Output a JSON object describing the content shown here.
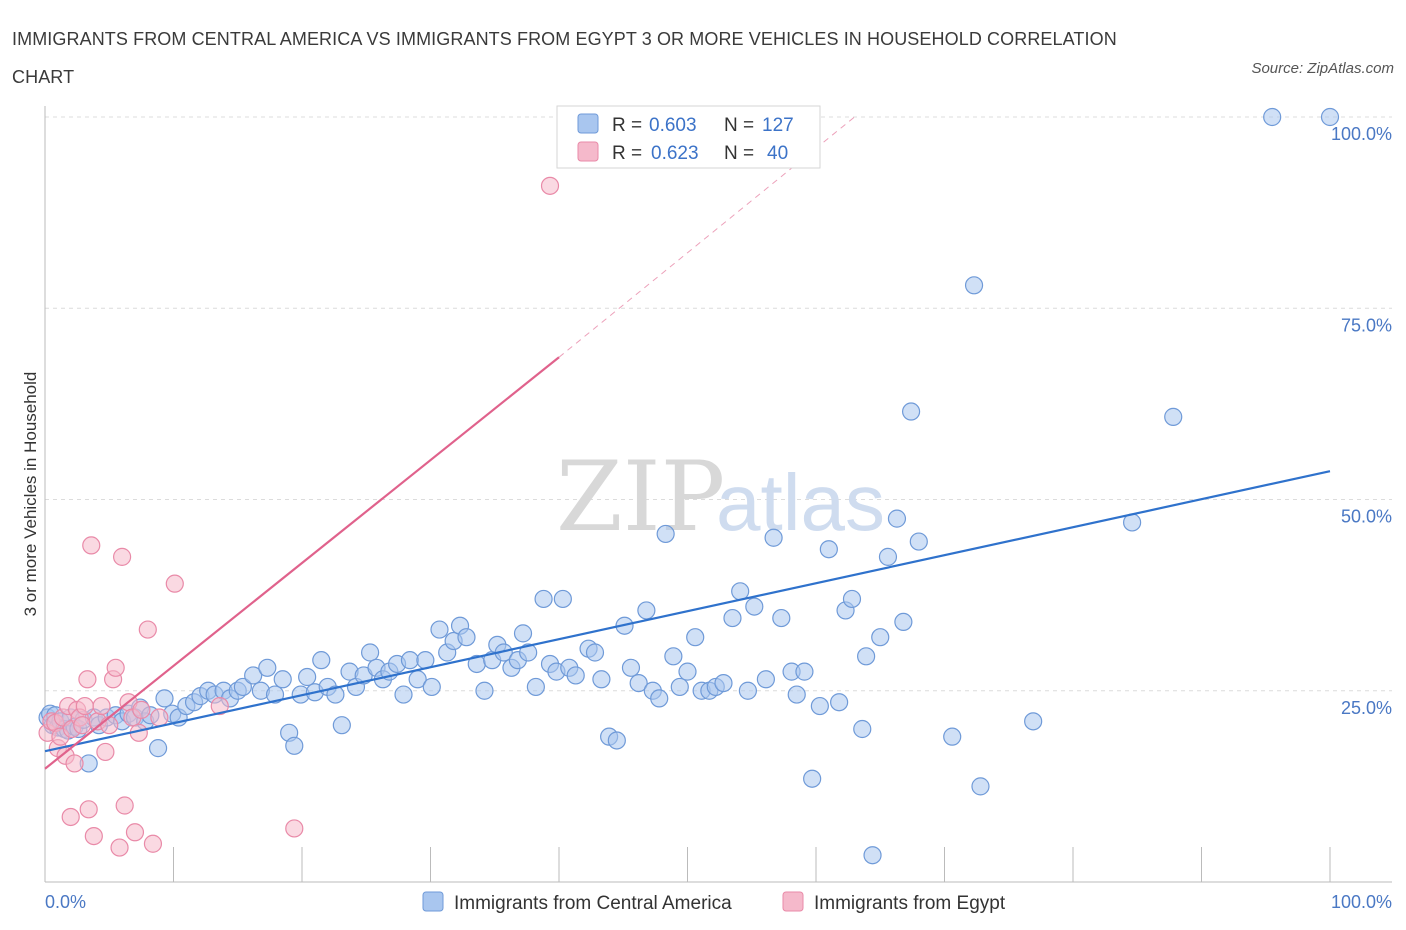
{
  "title": "IMMIGRANTS FROM CENTRAL AMERICA VS IMMIGRANTS FROM EGYPT 3 OR MORE VEHICLES IN HOUSEHOLD CORRELATION CHART",
  "source": "Source: ZipAtlas.com",
  "watermark": {
    "zip": "ZIP",
    "atlas": "atlas"
  },
  "legend": {
    "rows": [
      {
        "r_label": "R = ",
        "r_value": "0.603",
        "n_label": "N = ",
        "n_value": "127"
      },
      {
        "r_label": "R = ",
        "r_value": "0.623",
        "n_label": "N = ",
        "n_value": "40"
      }
    ]
  },
  "colors": {
    "blue_fill": "#a9c6ef",
    "blue_stroke": "#6f9ad8",
    "blue_line": "#2f72cc",
    "pink_fill": "#f5b9cb",
    "pink_stroke": "#e98aa8",
    "pink_line": "#e0628c",
    "grid": "#dcdcdc",
    "axis_text": "#4a78c4"
  },
  "chart_data": {
    "type": "scatter",
    "title": "IMMIGRANTS FROM CENTRAL AMERICA VS IMMIGRANTS FROM EGYPT 3 OR MORE VEHICLES IN HOUSEHOLD CORRELATION CHART",
    "xlabel": "",
    "ylabel": "3 or more Vehicles in Household",
    "xlim": [
      0,
      100
    ],
    "ylim": [
      0,
      100
    ],
    "x_tick_labels": [
      "0.0%",
      "100.0%"
    ],
    "y_tick_labels": [
      "25.0%",
      "50.0%",
      "75.0%",
      "100.0%"
    ],
    "y_ticks": [
      25,
      50,
      75,
      100
    ],
    "grid": true,
    "legend_position": "top-center",
    "series": [
      {
        "name": "Immigrants from Central America",
        "color": "#a9c6ef",
        "R": 0.603,
        "N": 127,
        "trend": {
          "x": [
            0,
            100
          ],
          "y": [
            17.1,
            53.7
          ]
        },
        "points": [
          [
            0.2,
            21.5
          ],
          [
            0.4,
            22.0
          ],
          [
            0.6,
            20.5
          ],
          [
            0.8,
            21.8
          ],
          [
            1.0,
            20.2
          ],
          [
            1.2,
            21.0
          ],
          [
            1.5,
            20.0
          ],
          [
            1.8,
            19.8
          ],
          [
            2.0,
            21.5
          ],
          [
            2.3,
            20.3
          ],
          [
            2.6,
            20.0
          ],
          [
            3.0,
            21.2
          ],
          [
            3.4,
            15.5
          ],
          [
            3.8,
            21.5
          ],
          [
            4.2,
            20.5
          ],
          [
            4.8,
            21.5
          ],
          [
            5.5,
            21.8
          ],
          [
            6.0,
            21.0
          ],
          [
            6.5,
            22.0
          ],
          [
            7.0,
            21.5
          ],
          [
            7.4,
            22.8
          ],
          [
            7.8,
            21.0
          ],
          [
            8.2,
            21.8
          ],
          [
            8.8,
            17.5
          ],
          [
            9.3,
            24.0
          ],
          [
            9.9,
            22.0
          ],
          [
            10.4,
            21.5
          ],
          [
            11.0,
            23.0
          ],
          [
            11.6,
            23.5
          ],
          [
            12.1,
            24.3
          ],
          [
            12.7,
            25.0
          ],
          [
            13.2,
            24.5
          ],
          [
            13.9,
            25.0
          ],
          [
            14.4,
            24.0
          ],
          [
            15.0,
            25.0
          ],
          [
            15.4,
            25.5
          ],
          [
            16.2,
            27.0
          ],
          [
            16.8,
            25.0
          ],
          [
            17.3,
            28.0
          ],
          [
            17.9,
            24.5
          ],
          [
            18.5,
            26.5
          ],
          [
            19.0,
            19.5
          ],
          [
            19.4,
            17.8
          ],
          [
            19.9,
            24.5
          ],
          [
            20.4,
            26.8
          ],
          [
            21.0,
            24.8
          ],
          [
            21.5,
            29.0
          ],
          [
            22.0,
            25.5
          ],
          [
            22.6,
            24.5
          ],
          [
            23.1,
            20.5
          ],
          [
            23.7,
            27.5
          ],
          [
            24.2,
            25.5
          ],
          [
            24.8,
            27.0
          ],
          [
            25.3,
            30.0
          ],
          [
            25.8,
            28.0
          ],
          [
            26.3,
            26.5
          ],
          [
            26.8,
            27.5
          ],
          [
            27.4,
            28.5
          ],
          [
            27.9,
            24.5
          ],
          [
            28.4,
            29.0
          ],
          [
            29.0,
            26.5
          ],
          [
            29.6,
            29.0
          ],
          [
            30.1,
            25.5
          ],
          [
            30.7,
            33.0
          ],
          [
            31.3,
            30.0
          ],
          [
            31.8,
            31.5
          ],
          [
            32.3,
            33.5
          ],
          [
            32.8,
            32.0
          ],
          [
            33.6,
            28.5
          ],
          [
            34.2,
            25.0
          ],
          [
            34.8,
            29.0
          ],
          [
            35.2,
            31.0
          ],
          [
            35.7,
            30.0
          ],
          [
            36.3,
            28.0
          ],
          [
            36.8,
            29.0
          ],
          [
            37.2,
            32.5
          ],
          [
            37.6,
            30.0
          ],
          [
            38.2,
            25.5
          ],
          [
            38.8,
            37.0
          ],
          [
            39.3,
            28.5
          ],
          [
            39.8,
            27.5
          ],
          [
            40.3,
            37.0
          ],
          [
            40.8,
            28.0
          ],
          [
            41.3,
            27.0
          ],
          [
            42.3,
            30.5
          ],
          [
            42.8,
            30.0
          ],
          [
            43.3,
            26.5
          ],
          [
            43.9,
            19.0
          ],
          [
            44.5,
            18.5
          ],
          [
            45.1,
            33.5
          ],
          [
            45.6,
            28.0
          ],
          [
            46.2,
            26.0
          ],
          [
            46.8,
            35.5
          ],
          [
            47.3,
            25.0
          ],
          [
            47.8,
            24.0
          ],
          [
            48.3,
            45.5
          ],
          [
            48.9,
            29.5
          ],
          [
            49.4,
            25.5
          ],
          [
            50.0,
            27.5
          ],
          [
            50.6,
            32.0
          ],
          [
            51.1,
            25.0
          ],
          [
            51.7,
            25.0
          ],
          [
            52.2,
            25.5
          ],
          [
            52.8,
            26.0
          ],
          [
            53.5,
            34.5
          ],
          [
            54.1,
            38.0
          ],
          [
            54.7,
            25.0
          ],
          [
            55.2,
            36.0
          ],
          [
            56.1,
            26.5
          ],
          [
            56.7,
            45.0
          ],
          [
            57.3,
            34.5
          ],
          [
            58.1,
            27.5
          ],
          [
            58.5,
            24.5
          ],
          [
            59.1,
            27.5
          ],
          [
            59.7,
            13.5
          ],
          [
            60.3,
            23.0
          ],
          [
            61.0,
            43.5
          ],
          [
            61.8,
            23.5
          ],
          [
            62.3,
            35.5
          ],
          [
            62.8,
            37.0
          ],
          [
            63.6,
            20.0
          ],
          [
            63.9,
            29.5
          ],
          [
            64.4,
            3.5
          ],
          [
            65.0,
            32.0
          ],
          [
            65.6,
            42.5
          ],
          [
            66.3,
            47.5
          ],
          [
            66.8,
            34.0
          ],
          [
            67.4,
            61.5
          ],
          [
            68.0,
            44.5
          ],
          [
            70.6,
            19.0
          ],
          [
            72.3,
            78.0
          ],
          [
            72.8,
            12.5
          ],
          [
            76.9,
            21.0
          ],
          [
            84.6,
            47.0
          ],
          [
            87.8,
            60.8
          ],
          [
            95.5,
            100.0
          ],
          [
            100.0,
            100.0
          ]
        ]
      },
      {
        "name": "Immigrants from Egypt",
        "color": "#f5b9cb",
        "R": 0.623,
        "N": 40,
        "trend": {
          "x": [
            0,
            40
          ],
          "y": [
            14.8,
            68.6
          ]
        },
        "trend_dashed": {
          "x": [
            40,
            63
          ],
          "y": [
            68.6,
            100
          ]
        },
        "points": [
          [
            0.2,
            19.5
          ],
          [
            0.5,
            21.0
          ],
          [
            0.8,
            20.8
          ],
          [
            1.0,
            17.5
          ],
          [
            1.2,
            19.0
          ],
          [
            1.4,
            21.5
          ],
          [
            1.6,
            16.5
          ],
          [
            1.8,
            23.0
          ],
          [
            2.0,
            8.5
          ],
          [
            2.1,
            20.0
          ],
          [
            2.3,
            15.5
          ],
          [
            2.5,
            22.5
          ],
          [
            2.7,
            21.5
          ],
          [
            2.9,
            20.5
          ],
          [
            3.1,
            23.0
          ],
          [
            3.3,
            26.5
          ],
          [
            3.4,
            9.5
          ],
          [
            3.6,
            44.0
          ],
          [
            3.8,
            6.0
          ],
          [
            4.1,
            21.0
          ],
          [
            4.4,
            23.0
          ],
          [
            4.7,
            17.0
          ],
          [
            5.0,
            20.5
          ],
          [
            5.3,
            26.5
          ],
          [
            5.5,
            28.0
          ],
          [
            5.8,
            4.5
          ],
          [
            6.0,
            42.5
          ],
          [
            6.2,
            10.0
          ],
          [
            6.5,
            23.5
          ],
          [
            6.8,
            21.5
          ],
          [
            7.0,
            6.5
          ],
          [
            7.3,
            19.5
          ],
          [
            7.5,
            22.5
          ],
          [
            8.0,
            33.0
          ],
          [
            8.4,
            5.0
          ],
          [
            8.9,
            21.5
          ],
          [
            10.1,
            39.0
          ],
          [
            13.6,
            23.0
          ],
          [
            19.4,
            7.0
          ],
          [
            39.3,
            91.0
          ]
        ]
      }
    ]
  },
  "bottom_legend": [
    {
      "label": "Immigrants from Central America"
    },
    {
      "label": "Immigrants from Egypt"
    }
  ]
}
